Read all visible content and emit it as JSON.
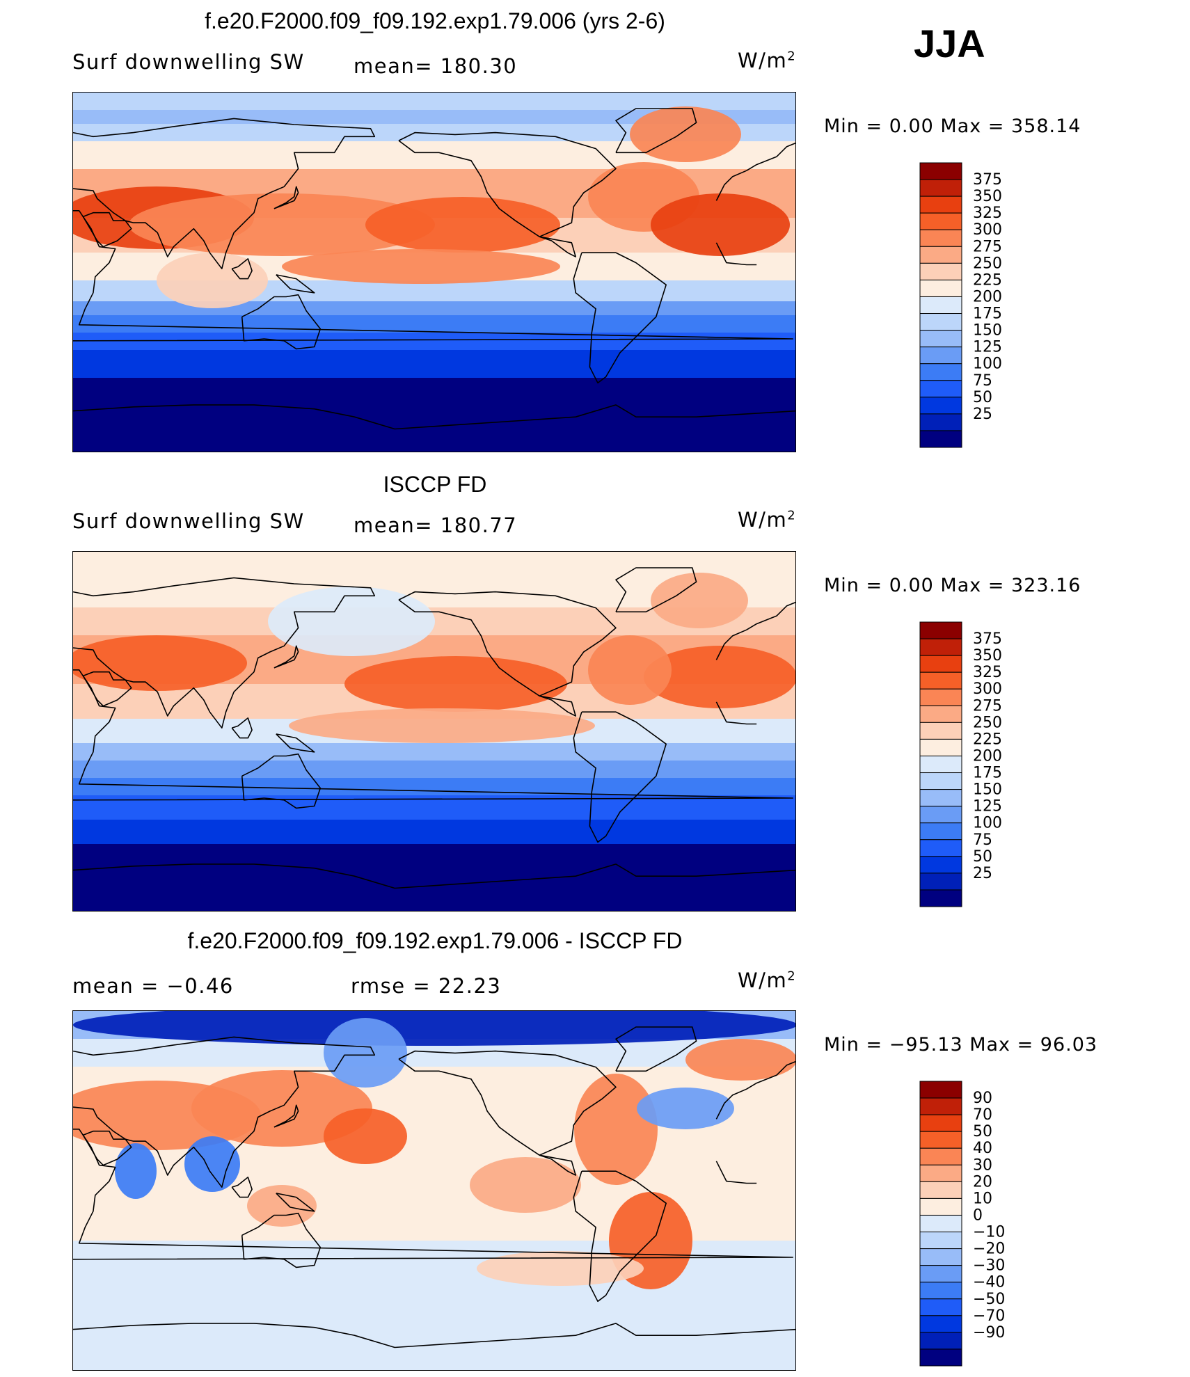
{
  "season": "JJA",
  "colors": {
    "seq": [
      "#000080",
      "#0020b8",
      "#0038e0",
      "#1f5cf8",
      "#3c7cf5",
      "#6a9cf5",
      "#98bcf8",
      "#bcd6fa",
      "#dceafa",
      "#fdeee0",
      "#fcd0b8",
      "#fbaa85",
      "#fa8555",
      "#f66028",
      "#e84010",
      "#c02008",
      "#8b0000"
    ],
    "div": [
      "#000080",
      "#0020b8",
      "#0038e0",
      "#1f5cf8",
      "#3c7cf5",
      "#6a9cf5",
      "#98bcf8",
      "#bcd6fa",
      "#dceafa",
      "#fdeee0",
      "#fcd0b8",
      "#fbaa85",
      "#fa8555",
      "#f66028",
      "#e84010",
      "#c02008",
      "#8b0000"
    ]
  },
  "panels": [
    {
      "title": "f.e20.F2000.f09_f09.192.exp1.79.006 (yrs 2-6)",
      "left": "Surf  downwelling  SW",
      "mid": "mean=  180.30",
      "units_base": "W/m",
      "units_exp": "2",
      "minmax": "Min  =      0.00  Max  =  358.14"
    },
    {
      "title": "ISCCP FD",
      "left": "Surf  downwelling  SW",
      "mid": "mean=  180.77",
      "units_base": "W/m",
      "units_exp": "2",
      "minmax": "Min  =      0.00  Max  =  323.16"
    },
    {
      "title": "f.e20.F2000.f09_f09.192.exp1.79.006 - ISCCP FD",
      "left": "mean  =    −0.46",
      "mid": "rmse  =    22.23",
      "units_base": "W/m",
      "units_exp": "2",
      "minmax": "Min  =  −95.13  Max  =    96.03"
    }
  ],
  "chart_data": [
    {
      "type": "heatmap",
      "title": "f.e20.F2000.f09_f09.192.exp1.79.006 (yrs 2-6)",
      "variable": "Surf downwelling SW",
      "units": "W/m2",
      "mean": 180.3,
      "min": 0.0,
      "max": 358.14,
      "colorbar_levels": [
        "375",
        "350",
        "325",
        "300",
        "275",
        "250",
        "225",
        "200",
        "175",
        "150",
        "125",
        "100",
        "75",
        "50",
        "25"
      ]
    },
    {
      "type": "heatmap",
      "title": "ISCCP FD",
      "variable": "Surf downwelling SW",
      "units": "W/m2",
      "mean": 180.77,
      "min": 0.0,
      "max": 323.16,
      "colorbar_levels": [
        "375",
        "350",
        "325",
        "300",
        "275",
        "250",
        "225",
        "200",
        "175",
        "150",
        "125",
        "100",
        "75",
        "50",
        "25"
      ]
    },
    {
      "type": "heatmap",
      "title": "f.e20.F2000.f09_f09.192.exp1.79.006 - ISCCP FD",
      "units": "W/m2",
      "mean": -0.46,
      "rmse": 22.23,
      "min": -95.13,
      "max": 96.03,
      "colorbar_levels": [
        "90",
        "70",
        "50",
        "40",
        "30",
        "20",
        "10",
        "0",
        "−10",
        "−20",
        "−30",
        "−40",
        "−50",
        "−70",
        "−90"
      ]
    }
  ]
}
